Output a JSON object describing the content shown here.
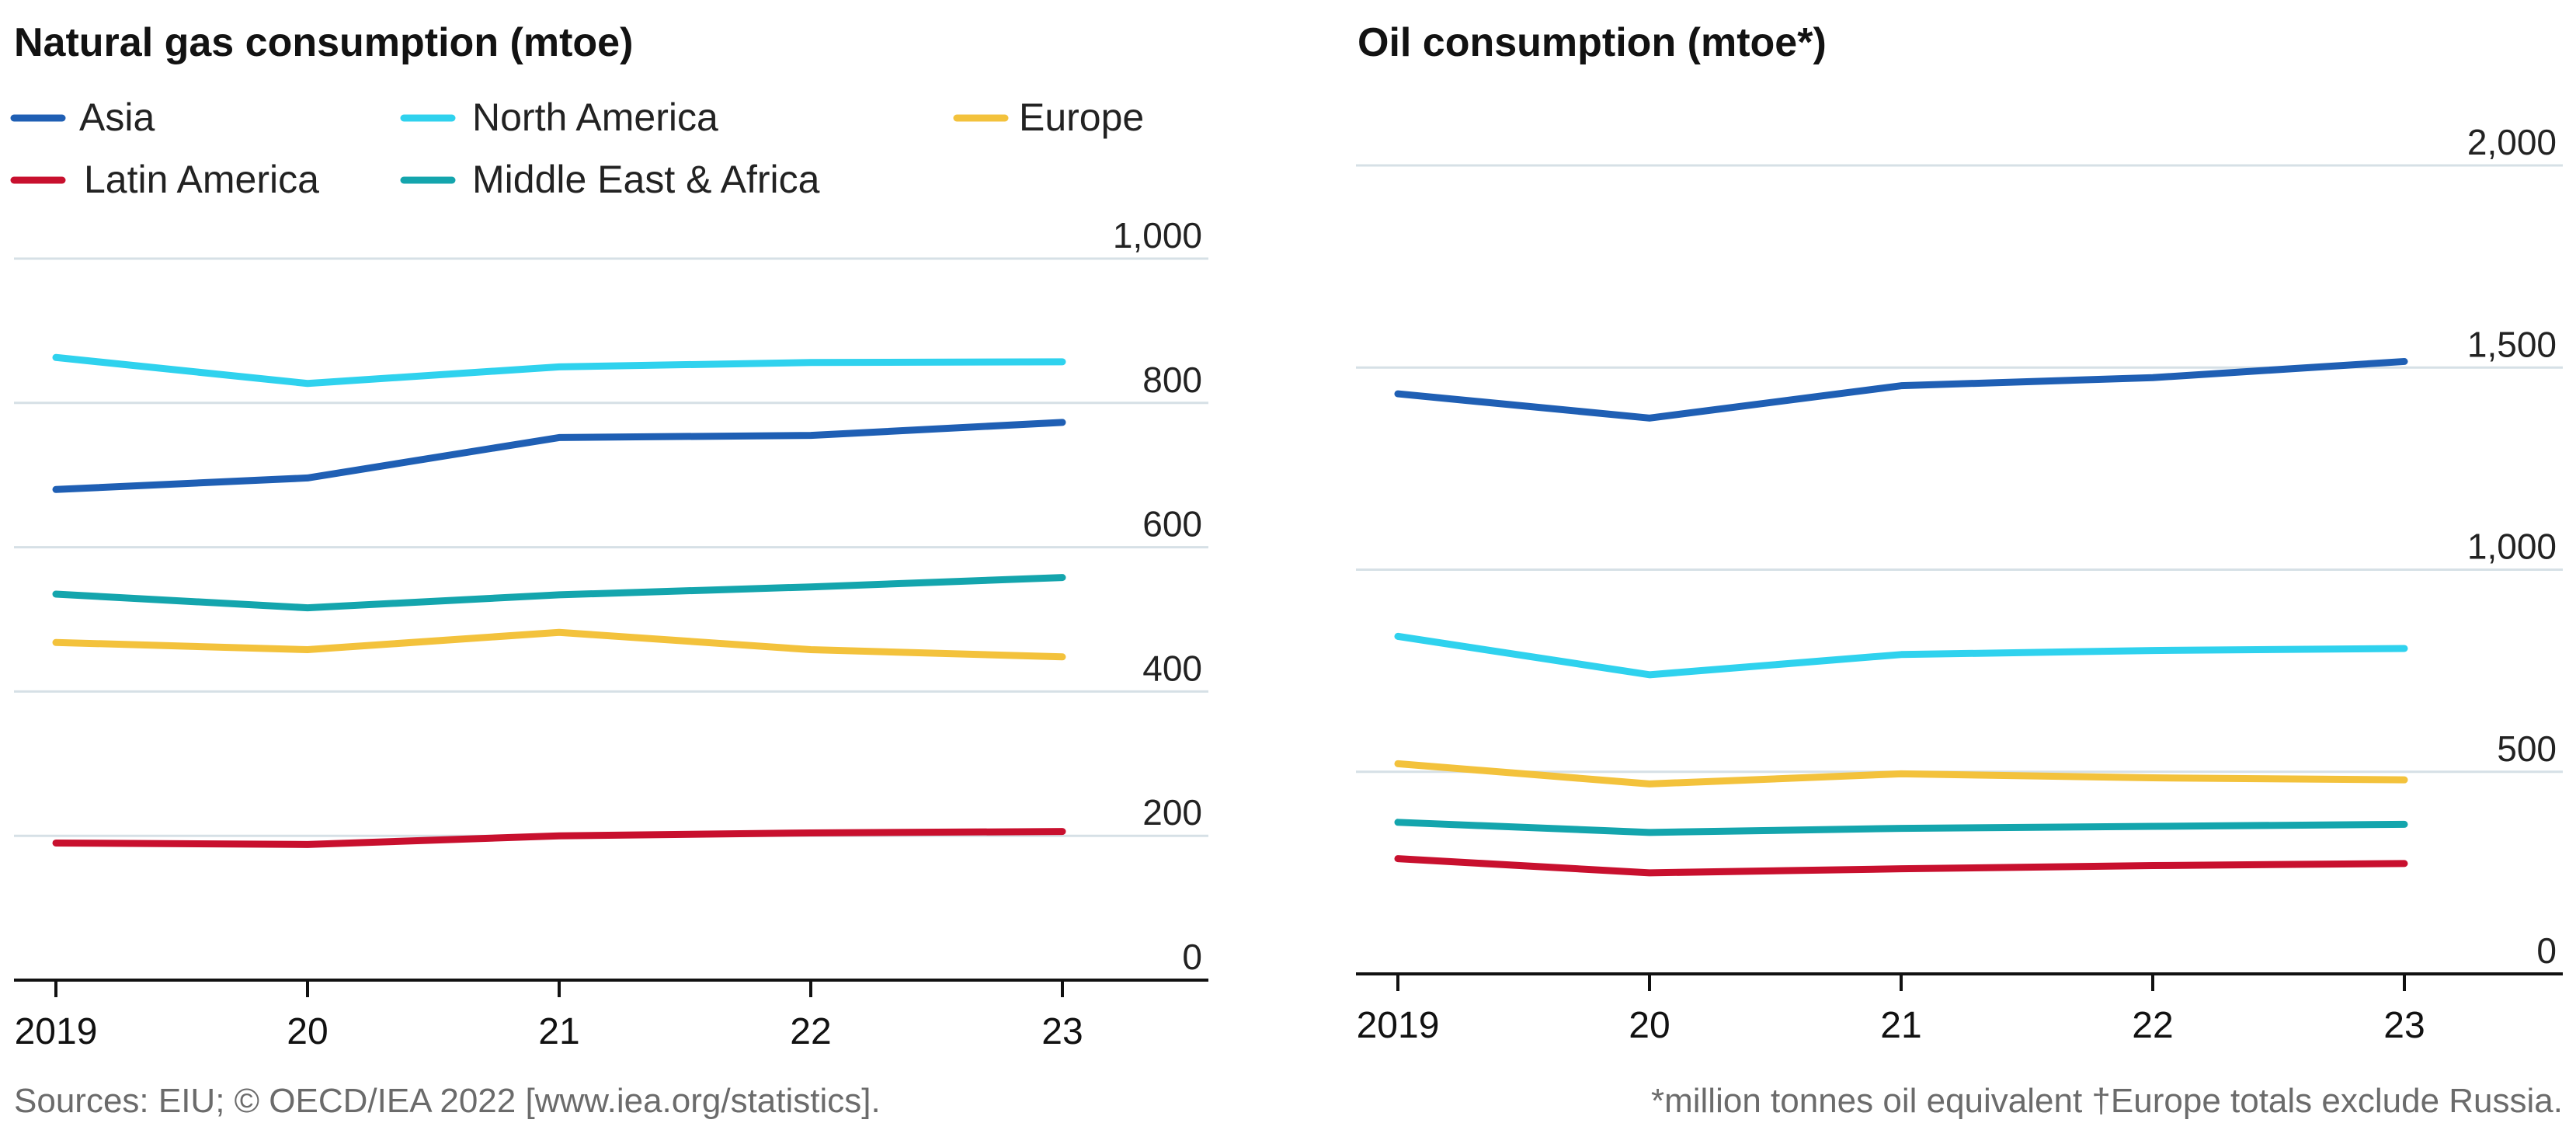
{
  "colors": {
    "Asia": "#1f5fb4",
    "North America": "#2fd2ee",
    "Europe": "#f3c23c",
    "Latin America": "#c8102e",
    "Middle East & Africa": "#14a5ad"
  },
  "chart_data": [
    {
      "type": "line",
      "title": "Natural gas consumption (mtoe)",
      "xlabel": "",
      "ylabel": "",
      "x": [
        2019,
        2020,
        2021,
        2022,
        2023
      ],
      "x_tick_labels": [
        "2019",
        "20",
        "21",
        "22",
        "23"
      ],
      "ylim": [
        0,
        1000
      ],
      "y_ticks": [
        0,
        200,
        400,
        600,
        800,
        1000
      ],
      "y_tick_labels": [
        "0",
        "200",
        "400",
        "600",
        "800",
        "1,000"
      ],
      "grid": true,
      "legend": "top-left",
      "series": [
        {
          "name": "Asia",
          "values": [
            680,
            696,
            752,
            755,
            773
          ]
        },
        {
          "name": "North America",
          "values": [
            863,
            827,
            850,
            856,
            857
          ]
        },
        {
          "name": "Europe",
          "values": [
            468,
            458,
            482,
            458,
            448
          ]
        },
        {
          "name": "Latin America",
          "values": [
            190,
            188,
            200,
            204,
            206
          ]
        },
        {
          "name": "Middle East & Africa",
          "values": [
            535,
            516,
            534,
            545,
            558
          ]
        }
      ],
      "source": "Sources: EIU; © OECD/IEA 2022 [www.iea.org/statistics]."
    },
    {
      "type": "line",
      "title": "Oil consumption (mtoe*)",
      "xlabel": "",
      "ylabel": "",
      "x": [
        2019,
        2020,
        2021,
        2022,
        2023
      ],
      "x_tick_labels": [
        "2019",
        "20",
        "21",
        "22",
        "23"
      ],
      "ylim": [
        0,
        2000
      ],
      "y_ticks": [
        0,
        500,
        1000,
        1500,
        2000
      ],
      "y_tick_labels": [
        "0",
        "500",
        "1,000",
        "1,500",
        "2,000"
      ],
      "grid": true,
      "series": [
        {
          "name": "Asia",
          "values": [
            1435,
            1375,
            1455,
            1475,
            1515
          ]
        },
        {
          "name": "North America",
          "values": [
            835,
            740,
            790,
            800,
            805
          ]
        },
        {
          "name": "Europe",
          "values": [
            520,
            470,
            495,
            485,
            480
          ]
        },
        {
          "name": "Latin America",
          "values": [
            285,
            250,
            260,
            268,
            273
          ]
        },
        {
          "name": "Middle East & Africa",
          "values": [
            375,
            350,
            360,
            365,
            370
          ]
        }
      ],
      "footnote": "*million tonnes oil equivalent  †Europe totals exclude Russia."
    }
  ]
}
